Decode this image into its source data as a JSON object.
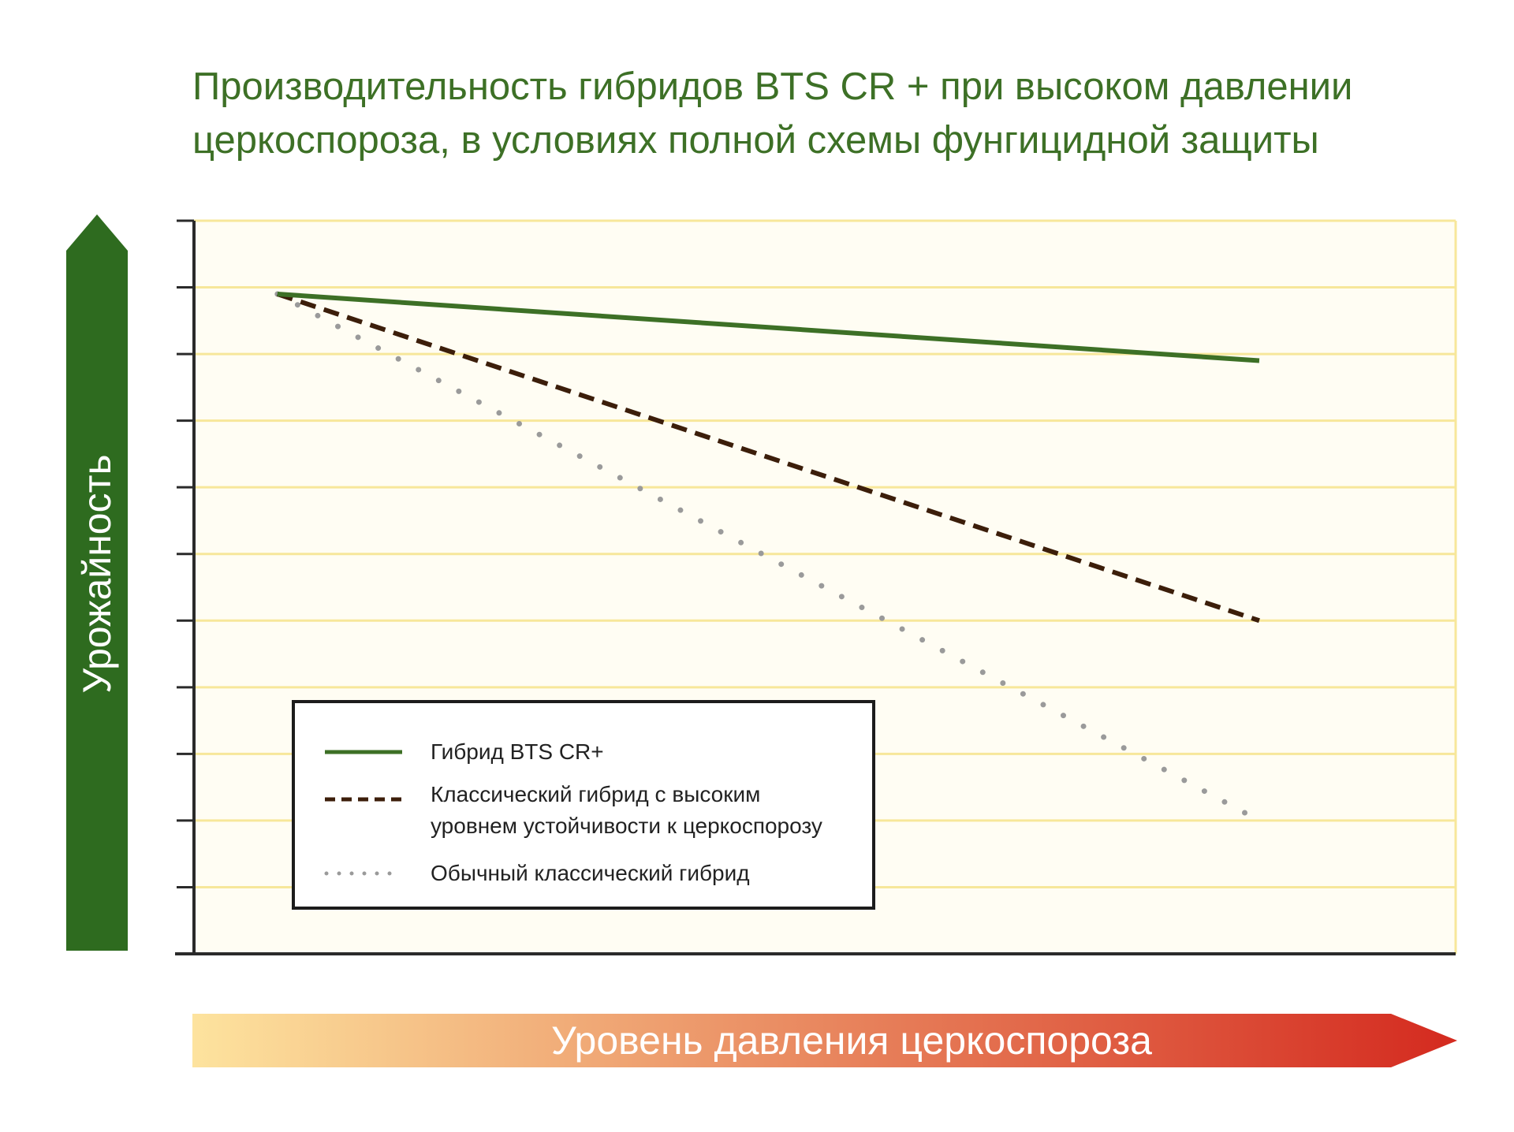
{
  "chart_data": {
    "type": "line",
    "title": "Производительность гибридов BTS CR + при высоком давлении церкоспороза, в условиях полной схемы фунгицидной защиты",
    "xlabel": "Уровень давления церкоспороза",
    "ylabel": "Урожайность",
    "x": [
      0,
      1
    ],
    "xlim": [
      -0.085,
      1.2
    ],
    "ylim": [
      0,
      11
    ],
    "yticks": [
      0,
      1,
      2,
      3,
      4,
      5,
      6,
      7,
      8,
      9,
      10,
      11
    ],
    "tick_labels_shown": false,
    "grid": true,
    "legend_position": "bottom-left",
    "series": [
      {
        "name": "Гибрид BTS CR+",
        "values": [
          9.9,
          8.9
        ],
        "color": "#3d7026",
        "style": "solid"
      },
      {
        "name": "Классический гибрид с высоким уровнем устойчивости к церкоспорозу",
        "values": [
          9.9,
          5.0
        ],
        "color": "#3c1e0a",
        "style": "dashed"
      },
      {
        "name": "Обычный классический гибрид",
        "values": [
          9.9,
          2.0
        ],
        "color": "#9a9a9a",
        "style": "dotted"
      }
    ]
  },
  "colors": {
    "title": "#3d7026",
    "y_arrow": "#2e6b1f",
    "plot_background": "#fffdf3",
    "gridline": "#f7e79a",
    "axis": "#2a2a2a",
    "x_arrow_start": "#fde39e",
    "x_arrow_end": "#d42a1f"
  },
  "legend_lines": [
    [
      "Гибрид BTS CR+"
    ],
    [
      "Классический гибрид с высоким",
      "уровнем устойчивости к церкоспорозу"
    ],
    [
      "Обычный классический гибрид"
    ]
  ]
}
